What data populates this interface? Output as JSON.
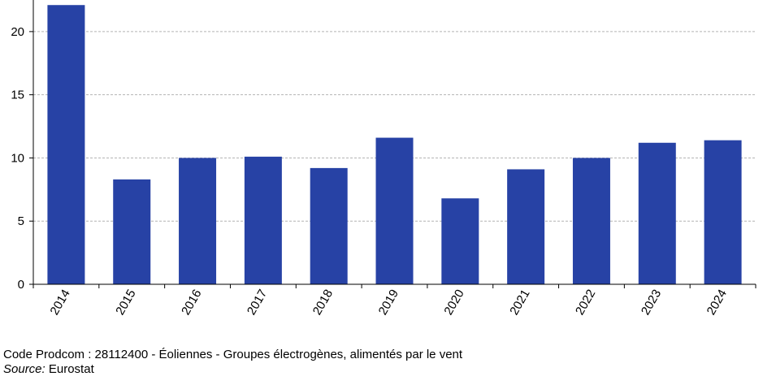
{
  "chart_data": {
    "type": "bar",
    "categories": [
      "2014",
      "2015",
      "2016",
      "2017",
      "2018",
      "2019",
      "2020",
      "2021",
      "2022",
      "2023",
      "2024"
    ],
    "series": [
      {
        "values": [
          22.1,
          8.3,
          10.0,
          10.1,
          9.2,
          11.6,
          6.8,
          9.1,
          10.0,
          11.2,
          11.4
        ]
      }
    ],
    "ylim": [
      0,
      22.5
    ],
    "yticks": [
      0,
      5,
      10,
      15,
      20
    ],
    "grid": true,
    "bar_color": "#2742A5",
    "grid_color": "#b4b4b4",
    "title": "",
    "xlabel": "",
    "ylabel": ""
  },
  "footer": {
    "note": "Code Prodcom : 28112400 - Éoliennes - Groupes électrogènes, alimentés par le vent",
    "source_label": "Source:",
    "source_value": "Eurostat"
  }
}
